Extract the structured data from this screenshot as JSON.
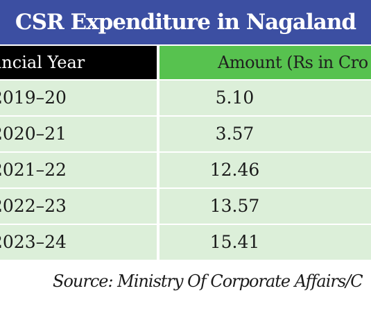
{
  "chart_data": {
    "type": "table",
    "title": "CSR Expenditure in Nagaland",
    "columns": [
      "ancial Year",
      "Amount (Rs in Cro"
    ],
    "rows": [
      {
        "year": "2019–20",
        "amount": "5.10"
      },
      {
        "year": "2020–21",
        "amount": "3.57"
      },
      {
        "year": "2021–22",
        "amount": "12.46"
      },
      {
        "year": "2022–23",
        "amount": "13.57"
      },
      {
        "year": "2023–24",
        "amount": "15.41"
      }
    ],
    "source": "Source: Ministry Of Corporate Affairs/C"
  },
  "colors": {
    "title_bg": "#3c4fa2",
    "header_left_bg": "#000000",
    "header_right_bg": "#57c24f",
    "row_bg": "#dcefd9"
  }
}
